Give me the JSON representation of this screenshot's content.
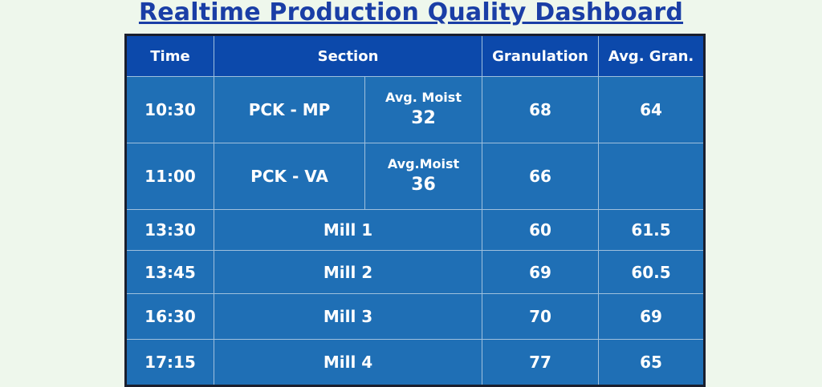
{
  "title": "Realtime Production Quality Dashboard",
  "headers": {
    "time": "Time",
    "section": "Section",
    "granulation": "Granulation",
    "avg_gran": "Avg. Gran."
  },
  "rows": [
    {
      "time": "10:30",
      "section": "PCK - MP",
      "moist_label": "Avg. Moist",
      "moist_value": "32",
      "granulation": "68",
      "avg_gran": "64"
    },
    {
      "time": "11:00",
      "section": "PCK - VA",
      "moist_label": "Avg.Moist",
      "moist_value": "36",
      "granulation": "66",
      "avg_gran": ""
    },
    {
      "time": "13:30",
      "section": "Mill 1",
      "granulation": "60",
      "avg_gran": "61.5"
    },
    {
      "time": "13:45",
      "section": "Mill 2",
      "granulation": "69",
      "avg_gran": "60.5"
    },
    {
      "time": "16:30",
      "section": "Mill 3",
      "granulation": "70",
      "avg_gran": "69"
    },
    {
      "time": "17:15",
      "section": "Mill 4",
      "granulation": "77",
      "avg_gran": "65"
    }
  ]
}
